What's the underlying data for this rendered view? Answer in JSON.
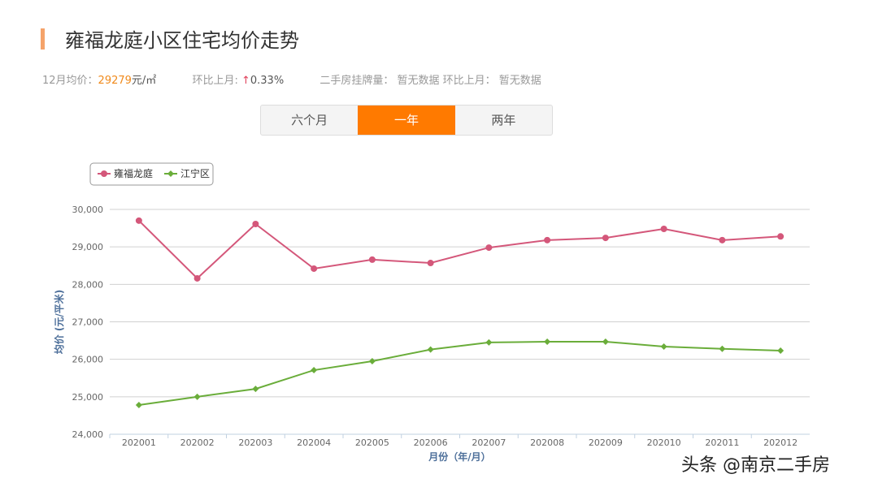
{
  "header": {
    "title": "雍福龙庭小区住宅均价走势"
  },
  "stats": {
    "avg_label": "12月均价：",
    "avg_value": "29279",
    "avg_unit": "元/㎡",
    "mom_label": "环比上月:",
    "mom_arrow": "↑",
    "mom_value": "0.33%",
    "listing_label": "二手房挂牌量：",
    "listing_value": "暂无数据",
    "listing_mom_label": "环比上月：",
    "listing_mom_value": "暂无数据"
  },
  "tabs": [
    {
      "label": "六个月",
      "active": false
    },
    {
      "label": "一年",
      "active": true
    },
    {
      "label": "两年",
      "active": false
    }
  ],
  "watermark": "头条 @南京二手房",
  "chart_data": {
    "type": "line",
    "categories": [
      "202001",
      "202002",
      "202003",
      "202004",
      "202005",
      "202006",
      "202007",
      "202008",
      "202009",
      "202010",
      "202011",
      "202012"
    ],
    "series": [
      {
        "name": "雍福龙庭",
        "color": "#d4577a",
        "values": [
          29700,
          28160,
          29610,
          28420,
          28660,
          28570,
          28980,
          29180,
          29240,
          29480,
          29180,
          29279
        ]
      },
      {
        "name": "江宁区",
        "color": "#6aad3a",
        "values": [
          24780,
          25000,
          25210,
          25710,
          25950,
          26260,
          26450,
          26470,
          26470,
          26340,
          26280,
          26230
        ]
      }
    ],
    "yticks": [
      "24,000",
      "25,000",
      "26,000",
      "27,000",
      "28,000",
      "29,000",
      "30,000"
    ],
    "ylim": [
      24000,
      30000
    ],
    "xlabel": "月份（年/月）",
    "ylabel": "均价 (元/平米)",
    "grid": true,
    "legend": "top-left"
  }
}
